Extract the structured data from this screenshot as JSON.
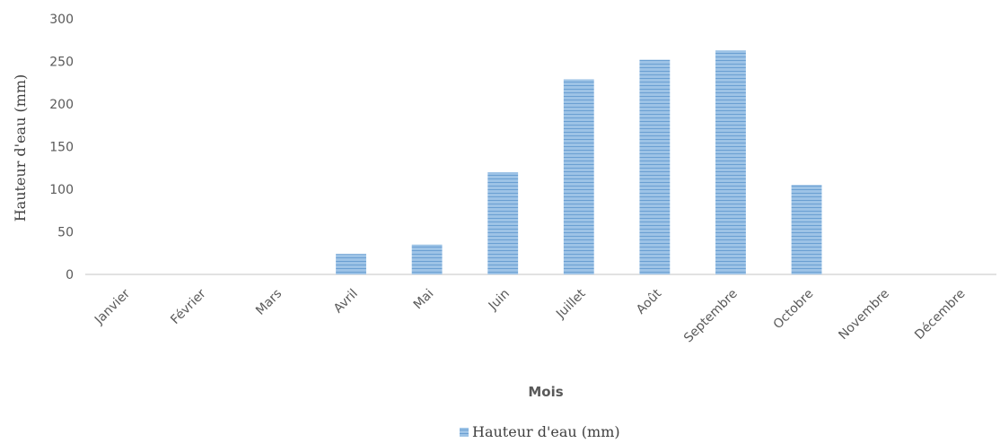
{
  "chart_data": {
    "type": "bar",
    "title": "",
    "xlabel": "Mois",
    "ylabel": "Hauteur d'eau (mm)",
    "ylim": [
      0,
      300
    ],
    "yticks": [
      0,
      50,
      100,
      150,
      200,
      250,
      300
    ],
    "grid": false,
    "legend_position": "bottom",
    "categories": [
      "Janvier",
      "Février",
      "Mars",
      "Avril",
      "Mai",
      "Juin",
      "Juillet",
      "Août",
      "Septembre",
      "Octobre",
      "Novembre",
      "Décembre"
    ],
    "series": [
      {
        "name": "Hauteur d'eau (mm)",
        "color": "#9dc3e6",
        "values": [
          0,
          0,
          0,
          24,
          35,
          120,
          229,
          252,
          263,
          105,
          0,
          0
        ]
      }
    ]
  }
}
